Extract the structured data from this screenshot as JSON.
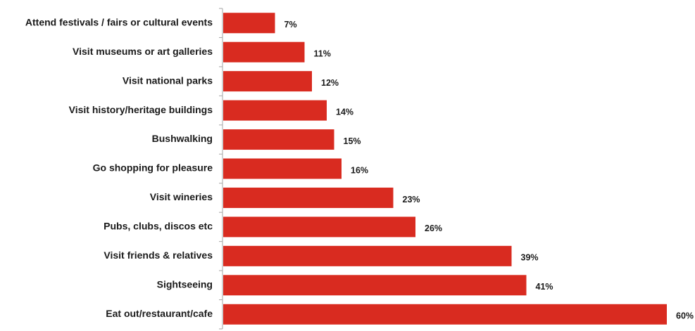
{
  "chart_data": {
    "type": "bar",
    "orientation": "horizontal",
    "categories": [
      "Attend festivals / fairs or cultural events",
      "Visit museums or art galleries",
      "Visit national parks",
      "Visit history/heritage buildings",
      "Bushwalking",
      "Go shopping for pleasure",
      "Visit wineries",
      "Pubs, clubs, discos etc",
      "Visit friends & relatives",
      "Sightseeing",
      "Eat out/restaurant/cafe"
    ],
    "values": [
      7,
      11,
      12,
      14,
      15,
      16,
      23,
      26,
      39,
      41,
      60
    ],
    "value_labels": [
      "7%",
      "11%",
      "12%",
      "14%",
      "15%",
      "16%",
      "23%",
      "26%",
      "39%",
      "41%",
      "60%"
    ],
    "unit": "%",
    "xlim": [
      0,
      60
    ],
    "grid": false,
    "legend": "none",
    "bar_color": "#d92b20",
    "axis_color": "#a6a6a6"
  }
}
